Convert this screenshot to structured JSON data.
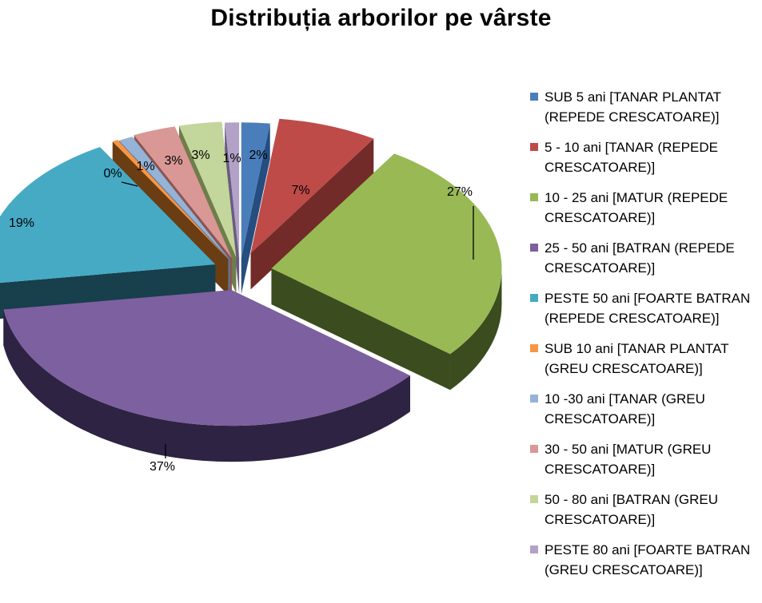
{
  "chart_data": {
    "type": "pie",
    "title": "Distribuția arborilor pe vârste",
    "legend_position": "right",
    "categories": [
      "SUB 5 ani [TANAR PLANTAT (REPEDE CRESCATOARE)]",
      "5 - 10 ani [TANAR (REPEDE CRESCATOARE)]",
      "10 - 25 ani [MATUR (REPEDE CRESCATOARE)]",
      "25 - 50 ani [BATRAN  (REPEDE CRESCATOARE)]",
      "PESTE 50 ani [FOARTE BATRAN (REPEDE CRESCATOARE)]",
      "SUB 10 ani [TANAR PLANTAT (GREU CRESCATOARE)]",
      "10 -30 ani [TANAR (GREU CRESCATOARE)]",
      "30 - 50 ani [MATUR (GREU CRESCATOARE)]",
      "50 - 80 ani [BATRAN  (GREU CRESCATOARE)]",
      "PESTE 80 ani [FOARTE BATRAN (GREU CRESCATOARE)]"
    ],
    "values": [
      2,
      7,
      27,
      37,
      19,
      0.4,
      1,
      3,
      3,
      1
    ],
    "data_labels": [
      "2%",
      "7%",
      "27%",
      "37%",
      "19%",
      "0%",
      "1%",
      "3%",
      "3%",
      "1%"
    ],
    "colors": [
      "#4a7ebb",
      "#be4b48",
      "#98b954",
      "#7d60a0",
      "#46aac5",
      "#f79646",
      "#95b3d7",
      "#d99795",
      "#c3d69b",
      "#b3a2c7"
    ],
    "side_colors": [
      "#264d80",
      "#722b29",
      "#3b4c1f",
      "#2e2343",
      "#173f4c",
      "#6b3d12",
      "#5a789e",
      "#8b5553",
      "#6f7d4a",
      "#6a5b82"
    ]
  }
}
